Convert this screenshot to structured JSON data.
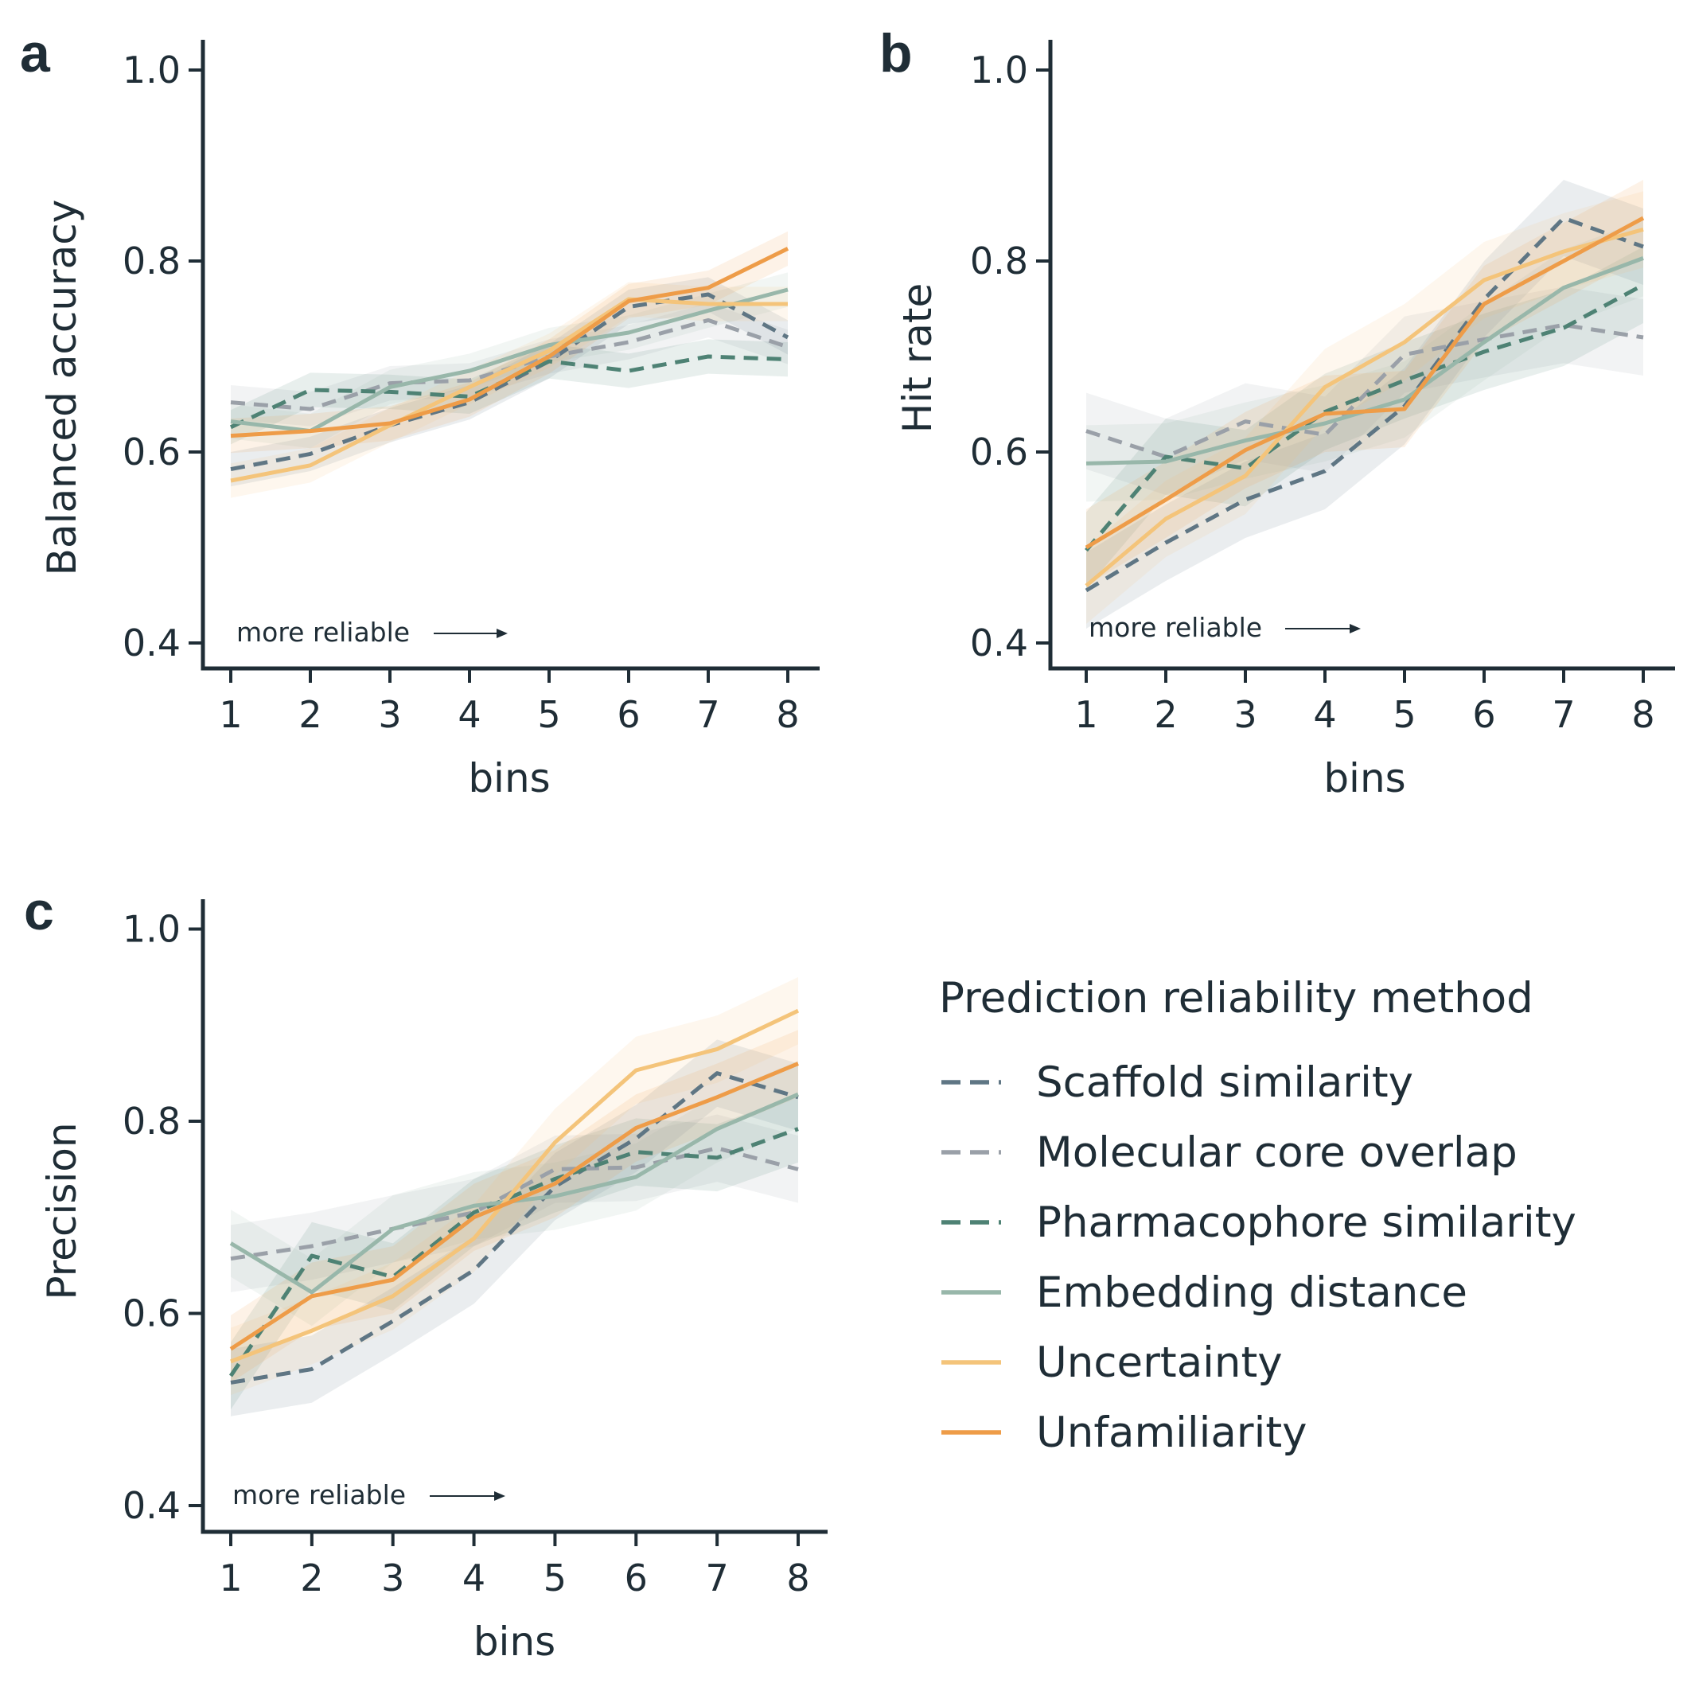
{
  "colors": {
    "Scaffold similarity": "#5f7684",
    "Molecular core overlap": "#9aa0a8",
    "Pharmacophore similarity": "#4e8274",
    "Embedding distance": "#98b7aa",
    "Uncertainty": "#f4c47a",
    "Unfamiliarity": "#ee9c48",
    "axis": "#1f2d36"
  },
  "legend": {
    "title": "Prediction reliability method",
    "items": [
      {
        "name": "Scaffold similarity",
        "dashed": true
      },
      {
        "name": "Molecular core overlap",
        "dashed": true
      },
      {
        "name": "Pharmacophore similarity",
        "dashed": true
      },
      {
        "name": "Embedding distance",
        "dashed": false
      },
      {
        "name": "Uncertainty",
        "dashed": false
      },
      {
        "name": "Unfamiliarity",
        "dashed": false
      }
    ]
  },
  "chart_data": [
    {
      "panel": "a",
      "type": "line",
      "xlabel": "bins",
      "ylabel": "Balanced accuracy",
      "x": [
        1,
        2,
        3,
        4,
        5,
        6,
        7,
        8
      ],
      "xticks": [
        "1",
        "2",
        "3",
        "4",
        "5",
        "6",
        "7",
        "8"
      ],
      "ylim": [
        0.4,
        1.0
      ],
      "yticks": [
        "0.4",
        "0.6",
        "0.8",
        "1.0"
      ],
      "annotation": "more reliable",
      "band": 0.018,
      "series": [
        {
          "name": "Scaffold similarity",
          "values": [
            0.582,
            0.598,
            0.628,
            0.652,
            0.695,
            0.752,
            0.765,
            0.72
          ]
        },
        {
          "name": "Molecular core overlap",
          "values": [
            0.652,
            0.645,
            0.672,
            0.675,
            0.7,
            0.715,
            0.738,
            0.71
          ]
        },
        {
          "name": "Pharmacophore similarity",
          "values": [
            0.626,
            0.665,
            0.663,
            0.658,
            0.695,
            0.685,
            0.7,
            0.697
          ]
        },
        {
          "name": "Embedding distance",
          "values": [
            0.632,
            0.622,
            0.668,
            0.685,
            0.712,
            0.725,
            0.748,
            0.77
          ]
        },
        {
          "name": "Uncertainty",
          "values": [
            0.57,
            0.586,
            0.628,
            0.668,
            0.706,
            0.76,
            0.755,
            0.755
          ]
        },
        {
          "name": "Unfamiliarity",
          "values": [
            0.617,
            0.622,
            0.63,
            0.655,
            0.7,
            0.758,
            0.772,
            0.813
          ]
        }
      ]
    },
    {
      "panel": "b",
      "type": "line",
      "xlabel": "bins",
      "ylabel": "Hit rate",
      "x": [
        1,
        2,
        3,
        4,
        5,
        6,
        7,
        8
      ],
      "xticks": [
        "1",
        "2",
        "3",
        "4",
        "5",
        "6",
        "7",
        "8"
      ],
      "ylim": [
        0.4,
        1.0
      ],
      "yticks": [
        "0.4",
        "0.6",
        "0.8",
        "1.0"
      ],
      "annotation": "more reliable",
      "band": 0.04,
      "series": [
        {
          "name": "Scaffold similarity",
          "values": [
            0.455,
            0.505,
            0.55,
            0.58,
            0.648,
            0.76,
            0.845,
            0.815
          ]
        },
        {
          "name": "Molecular core overlap",
          "values": [
            0.622,
            0.595,
            0.632,
            0.618,
            0.702,
            0.718,
            0.733,
            0.72
          ]
        },
        {
          "name": "Pharmacophore similarity",
          "values": [
            0.497,
            0.595,
            0.583,
            0.642,
            0.675,
            0.705,
            0.73,
            0.775
          ]
        },
        {
          "name": "Embedding distance",
          "values": [
            0.588,
            0.59,
            0.612,
            0.63,
            0.655,
            0.715,
            0.772,
            0.803
          ]
        },
        {
          "name": "Uncertainty",
          "values": [
            0.46,
            0.53,
            0.575,
            0.668,
            0.715,
            0.78,
            0.81,
            0.833
          ]
        },
        {
          "name": "Unfamiliarity",
          "values": [
            0.5,
            0.55,
            0.602,
            0.64,
            0.645,
            0.755,
            0.8,
            0.845
          ]
        }
      ]
    },
    {
      "panel": "c",
      "type": "line",
      "xlabel": "bins",
      "ylabel": "Precision",
      "x": [
        1,
        2,
        3,
        4,
        5,
        6,
        7,
        8
      ],
      "xticks": [
        "1",
        "2",
        "3",
        "4",
        "5",
        "6",
        "7",
        "8"
      ],
      "ylim": [
        0.4,
        1.0
      ],
      "yticks": [
        "0.4",
        "0.6",
        "0.8",
        "1.0"
      ],
      "annotation": "more reliable",
      "band": 0.035,
      "series": [
        {
          "name": "Scaffold similarity",
          "values": [
            0.528,
            0.542,
            0.592,
            0.645,
            0.732,
            0.782,
            0.85,
            0.825
          ]
        },
        {
          "name": "Molecular core overlap",
          "values": [
            0.657,
            0.67,
            0.688,
            0.705,
            0.75,
            0.752,
            0.772,
            0.75
          ]
        },
        {
          "name": "Pharmacophore similarity",
          "values": [
            0.535,
            0.66,
            0.638,
            0.705,
            0.74,
            0.768,
            0.762,
            0.792
          ]
        },
        {
          "name": "Embedding distance",
          "values": [
            0.673,
            0.622,
            0.688,
            0.712,
            0.722,
            0.742,
            0.792,
            0.828
          ]
        },
        {
          "name": "Uncertainty",
          "values": [
            0.55,
            0.582,
            0.618,
            0.678,
            0.778,
            0.853,
            0.875,
            0.915
          ]
        },
        {
          "name": "Unfamiliarity",
          "values": [
            0.563,
            0.618,
            0.635,
            0.7,
            0.735,
            0.793,
            0.825,
            0.86
          ]
        }
      ]
    }
  ]
}
